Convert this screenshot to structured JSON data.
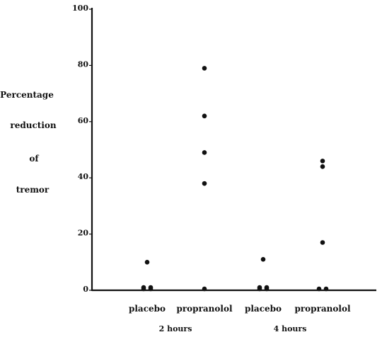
{
  "chart_data": {
    "type": "scatter",
    "title": "",
    "xlabel": "",
    "ylabel_lines": [
      "Percentage",
      "reduction",
      "of",
      "tremor"
    ],
    "ylim": [
      0,
      100
    ],
    "yticks": [
      "0",
      "20",
      "40",
      "60",
      "80",
      "100"
    ],
    "grid": false,
    "legend": "none",
    "categories": [
      "placebo",
      "propranolol",
      "placebo",
      "propranolol"
    ],
    "groups": [
      "2 hours",
      "4 hours"
    ],
    "points": [
      {
        "category": 0,
        "y": 10
      },
      {
        "category": 0,
        "y": 1
      },
      {
        "category": 0,
        "y": 1
      },
      {
        "category": 0,
        "y": 0
      },
      {
        "category": 0,
        "y": 0
      },
      {
        "category": 1,
        "y": 79
      },
      {
        "category": 1,
        "y": 62
      },
      {
        "category": 1,
        "y": 49
      },
      {
        "category": 1,
        "y": 38
      },
      {
        "category": 1,
        "y": 0
      },
      {
        "category": 2,
        "y": 11
      },
      {
        "category": 2,
        "y": 1
      },
      {
        "category": 2,
        "y": 1
      },
      {
        "category": 2,
        "y": 0
      },
      {
        "category": 2,
        "y": 0
      },
      {
        "category": 3,
        "y": 46
      },
      {
        "category": 3,
        "y": 44
      },
      {
        "category": 3,
        "y": 17
      },
      {
        "category": 3,
        "y": 0
      },
      {
        "category": 3,
        "y": 0
      }
    ],
    "marker_color": "#111111",
    "axis_color": "#111111"
  }
}
